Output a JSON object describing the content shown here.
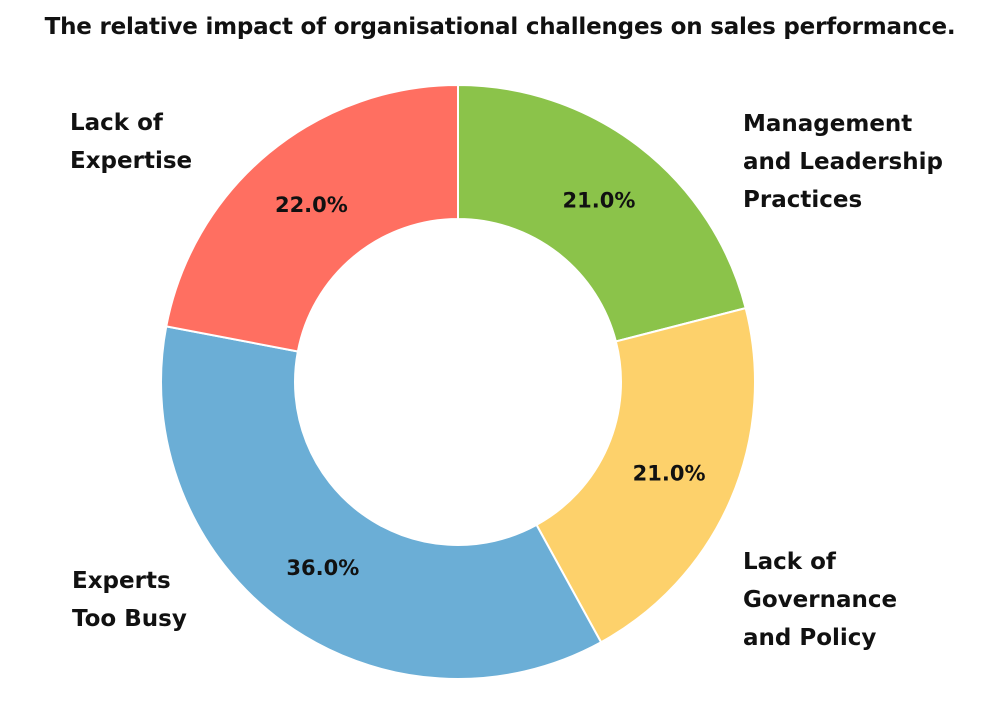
{
  "chart_data": {
    "type": "pie",
    "title": "The relative impact of organisational challenges on sales performance.",
    "donut": true,
    "unit": "%",
    "slices": [
      {
        "label": "Management\nand Leadership\nPractices",
        "value": 21.0,
        "display": "21.0%",
        "color": "#8bc34a"
      },
      {
        "label": "Lack of\nGovernance\nand Policy",
        "value": 21.0,
        "display": "21.0%",
        "color": "#fdd16b"
      },
      {
        "label": "Experts\nToo Busy",
        "value": 36.0,
        "display": "36.0%",
        "color": "#6baed6"
      },
      {
        "label": "Lack of\nExpertise",
        "value": 22.0,
        "display": "22.0%",
        "color": "#ff6f61"
      }
    ]
  }
}
